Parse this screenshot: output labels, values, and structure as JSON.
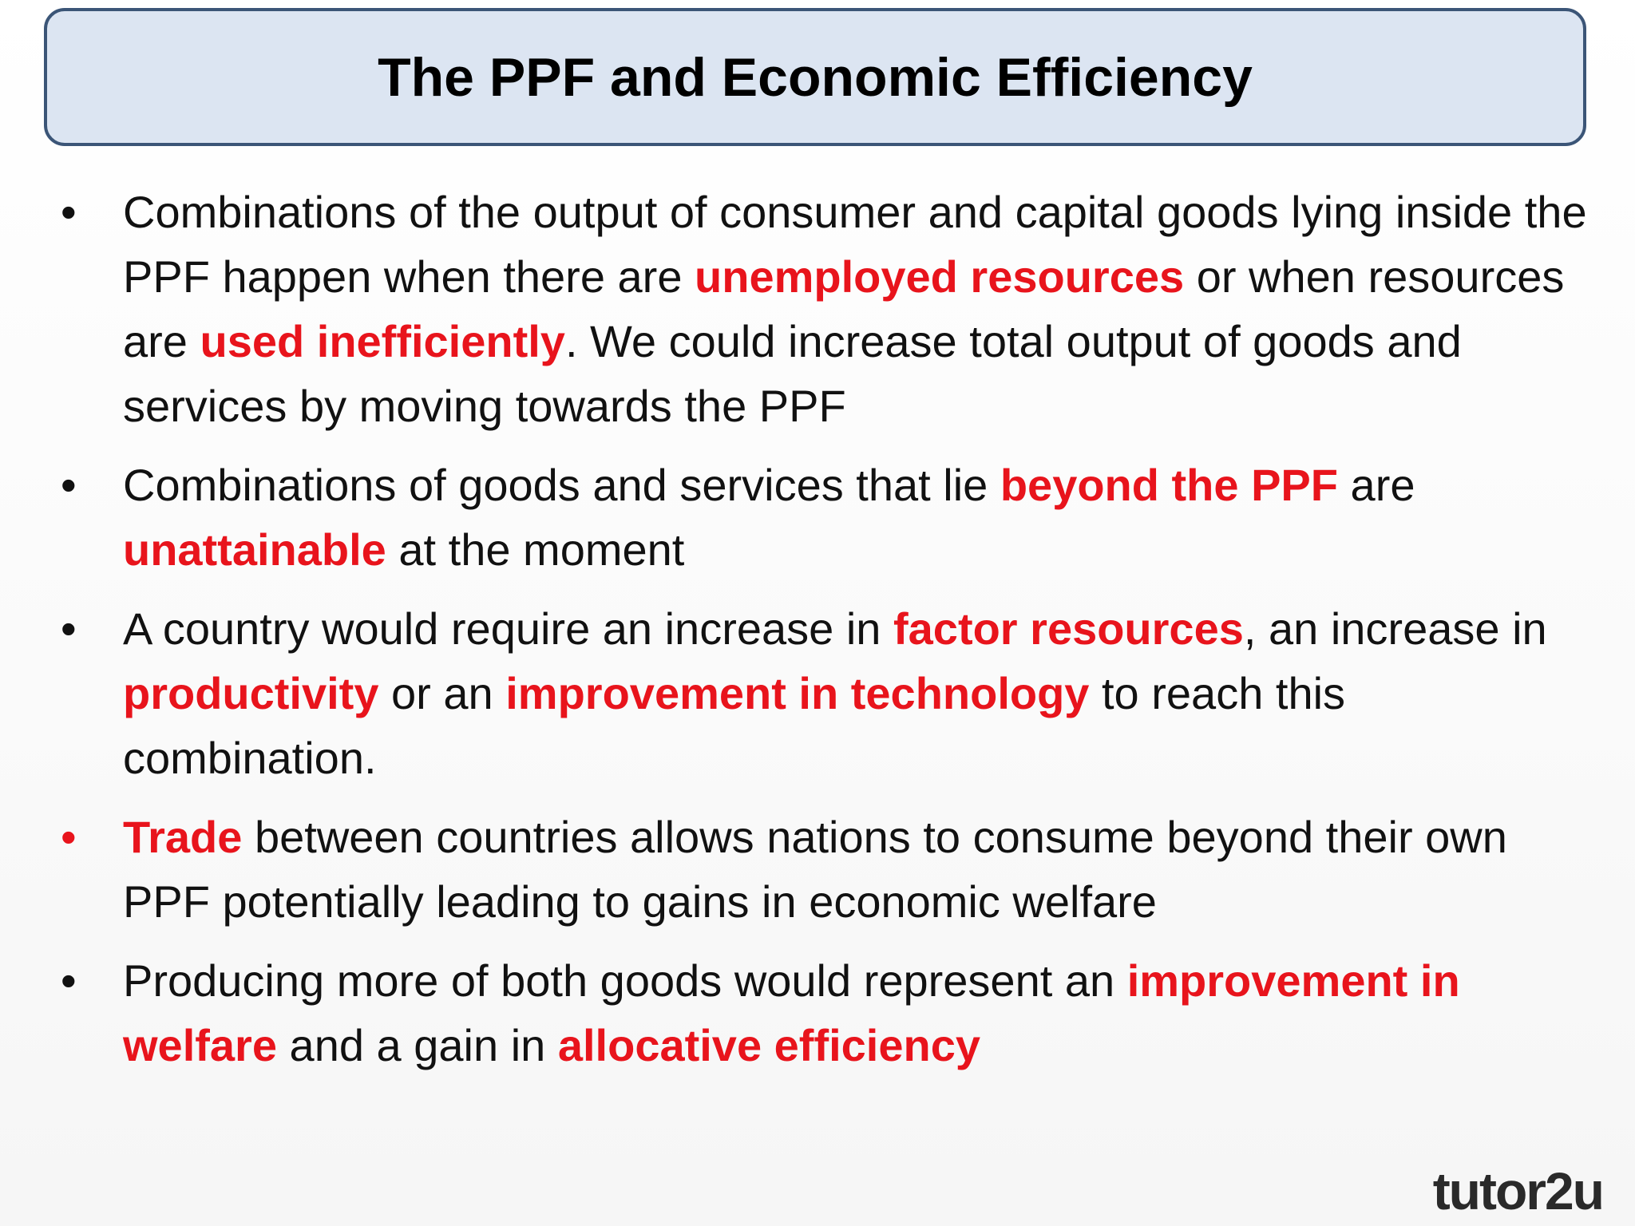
{
  "header": {
    "title": "The PPF and Economic Efficiency"
  },
  "accent_color": "#e8141c",
  "bullets": [
    {
      "highlight": false,
      "segments": [
        {
          "text": "Combinations of the output of consumer and capital goods lying inside the PPF happen when there are ",
          "highlight": false
        },
        {
          "text": "unemployed resources",
          "highlight": true
        },
        {
          "text": " or when resources are ",
          "highlight": false
        },
        {
          "text": "used inefficiently",
          "highlight": true
        },
        {
          "text": ". We could increase total output of goods and services by moving towards the PPF",
          "highlight": false
        }
      ]
    },
    {
      "highlight": false,
      "segments": [
        {
          "text": "Combinations of goods and services that lie ",
          "highlight": false
        },
        {
          "text": "beyond the PPF",
          "highlight": true
        },
        {
          "text": " are ",
          "highlight": false
        },
        {
          "text": "unattainable",
          "highlight": true
        },
        {
          "text": " at the moment",
          "highlight": false
        }
      ]
    },
    {
      "highlight": false,
      "segments": [
        {
          "text": "A country would require an increase in ",
          "highlight": false
        },
        {
          "text": "factor resources",
          "highlight": true
        },
        {
          "text": ", an increase in ",
          "highlight": false
        },
        {
          "text": "productivity",
          "highlight": true
        },
        {
          "text": " or an ",
          "highlight": false
        },
        {
          "text": "improvement in technology",
          "highlight": true
        },
        {
          "text": " to reach this combination.",
          "highlight": false
        }
      ]
    },
    {
      "highlight": true,
      "segments": [
        {
          "text": "Trade",
          "highlight": true
        },
        {
          "text": " between countries allows nations to consume beyond their own PPF potentially leading to gains in economic welfare",
          "highlight": false
        }
      ]
    },
    {
      "highlight": false,
      "segments": [
        {
          "text": "Producing more of both goods would represent an ",
          "highlight": false
        },
        {
          "text": "improvement in welfare",
          "highlight": true
        },
        {
          "text": " and a gain in ",
          "highlight": false
        },
        {
          "text": "allocative efficiency",
          "highlight": true
        }
      ]
    }
  ],
  "logo": "tutor2u"
}
